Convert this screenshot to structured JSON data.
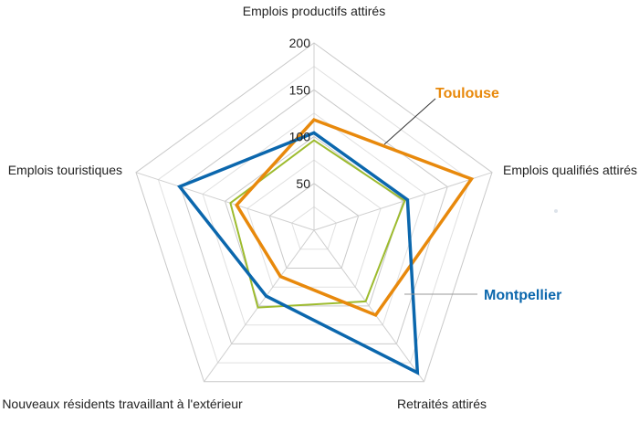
{
  "chart_data": {
    "type": "radar",
    "axes": [
      "Emplois productifs attirés",
      "Emplois qualifiés attirés",
      "Retraités attirés",
      "Nouveaux résidents travaillant à l'extérieur",
      "Emplois touristiques"
    ],
    "r_ticks": [
      50,
      100,
      150,
      200
    ],
    "r_range": [
      0,
      200
    ],
    "grid": true,
    "series": [
      {
        "name": "",
        "color": "#9dbb2e",
        "values": [
          96,
          102,
          94,
          102,
          94
        ]
      },
      {
        "name": "Toulouse",
        "color": "#e8890c",
        "values": [
          118,
          177,
          112,
          61,
          87
        ]
      },
      {
        "name": "Montpellier",
        "color": "#0b67ad",
        "values": [
          104,
          105,
          188,
          87,
          151
        ]
      }
    ]
  }
}
